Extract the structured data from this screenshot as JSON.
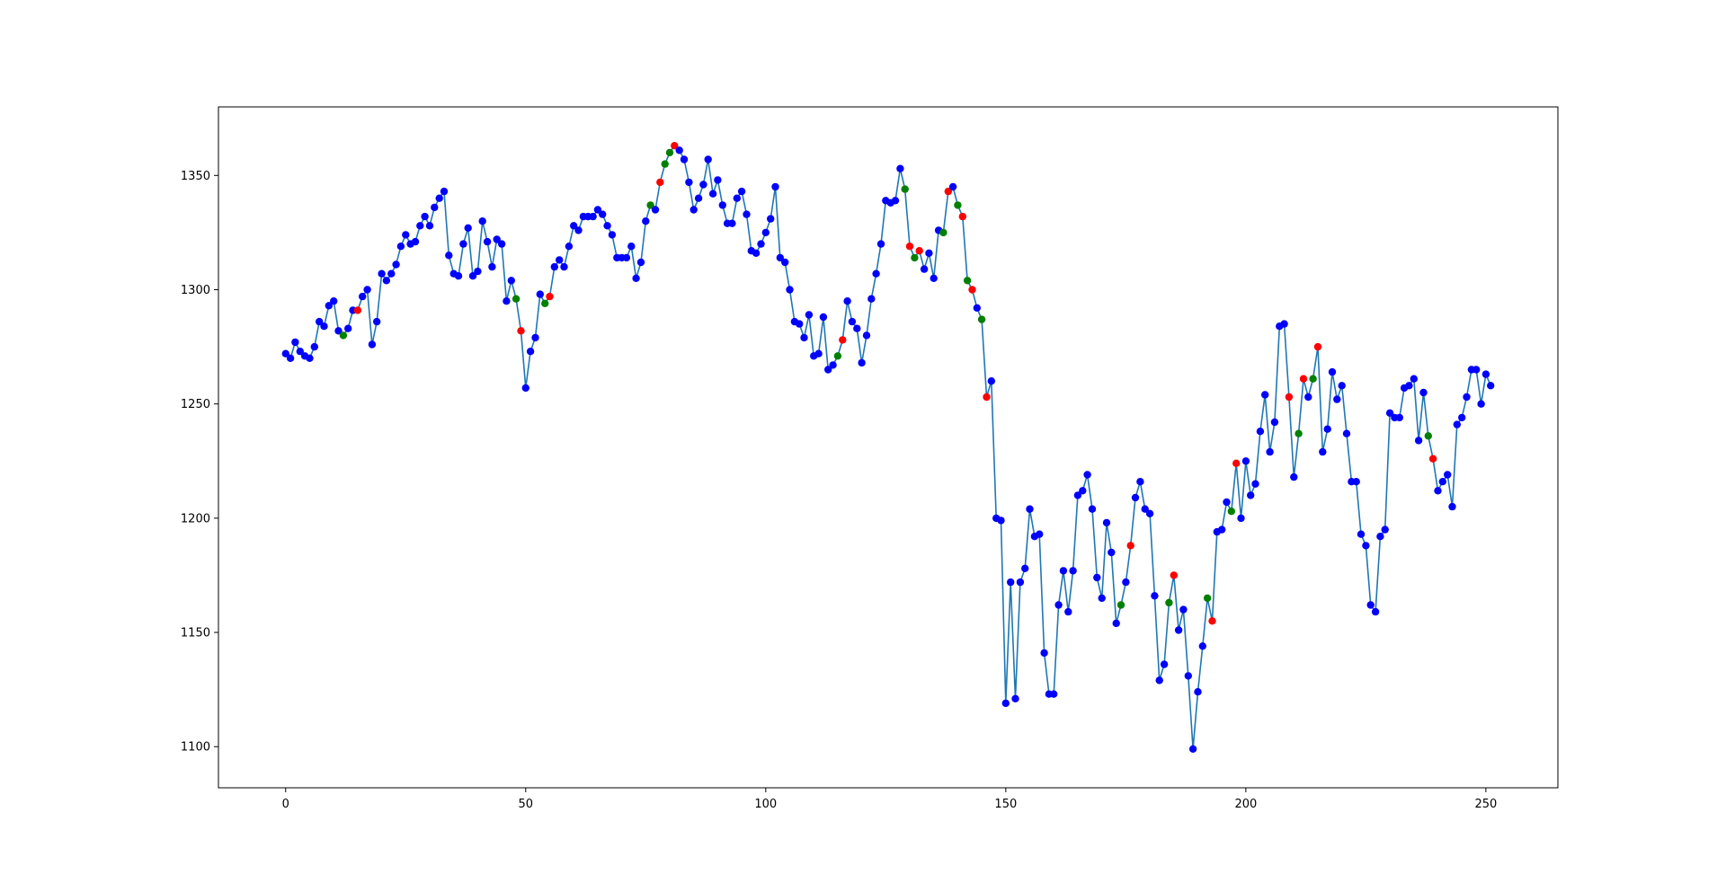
{
  "chart_data": {
    "type": "line",
    "title": "",
    "xlabel": "",
    "ylabel": "",
    "xlim": [
      -14,
      265
    ],
    "ylim": [
      1082,
      1380
    ],
    "x_ticks": [
      0,
      50,
      100,
      150,
      200,
      250
    ],
    "y_ticks": [
      1100,
      1150,
      1200,
      1250,
      1300,
      1350
    ],
    "grid": false,
    "legend": "none",
    "line_color": "#1f77b4",
    "marker_colors": {
      "b": "#0000ff",
      "r": "#ff0000",
      "g": "#008000"
    },
    "x": [
      0,
      1,
      2,
      3,
      4,
      5,
      6,
      7,
      8,
      9,
      10,
      11,
      12,
      13,
      14,
      15,
      16,
      17,
      18,
      19,
      20,
      21,
      22,
      23,
      24,
      25,
      26,
      27,
      28,
      29,
      30,
      31,
      32,
      33,
      34,
      35,
      36,
      37,
      38,
      39,
      40,
      41,
      42,
      43,
      44,
      45,
      46,
      47,
      48,
      49,
      50,
      51,
      52,
      53,
      54,
      55,
      56,
      57,
      58,
      59,
      60,
      61,
      62,
      63,
      64,
      65,
      66,
      67,
      68,
      69,
      70,
      71,
      72,
      73,
      74,
      75,
      76,
      77,
      78,
      79,
      80,
      81,
      82,
      83,
      84,
      85,
      86,
      87,
      88,
      89,
      90,
      91,
      92,
      93,
      94,
      95,
      96,
      97,
      98,
      99,
      100,
      101,
      102,
      103,
      104,
      105,
      106,
      107,
      108,
      109,
      110,
      111,
      112,
      113,
      114,
      115,
      116,
      117,
      118,
      119,
      120,
      121,
      122,
      123,
      124,
      125,
      126,
      127,
      128,
      129,
      130,
      131,
      132,
      133,
      134,
      135,
      136,
      137,
      138,
      139,
      140,
      141,
      142,
      143,
      144,
      145,
      146,
      147,
      148,
      149,
      150,
      151,
      152,
      153,
      154,
      155,
      156,
      157,
      158,
      159,
      160,
      161,
      162,
      163,
      164,
      165,
      166,
      167,
      168,
      169,
      170,
      171,
      172,
      173,
      174,
      175,
      176,
      177,
      178,
      179,
      180,
      181,
      182,
      183,
      184,
      185,
      186,
      187,
      188,
      189,
      190,
      191,
      192,
      193,
      194,
      195,
      196,
      197,
      198,
      199,
      200,
      201,
      202,
      203,
      204,
      205,
      206,
      207,
      208,
      209,
      210,
      211,
      212,
      213,
      214,
      215,
      216,
      217,
      218,
      219,
      220,
      221,
      222,
      223,
      224,
      225,
      226,
      227,
      228,
      229,
      230,
      231,
      232,
      233,
      234,
      235,
      236,
      237,
      238,
      239,
      240,
      241,
      242,
      243,
      244,
      245,
      246,
      247,
      248,
      249,
      250,
      251
    ],
    "y": [
      1272,
      1270,
      1277,
      1273,
      1271,
      1270,
      1275,
      1286,
      1284,
      1293,
      1295,
      1282,
      1280,
      1283,
      1291,
      1291,
      1297,
      1300,
      1276,
      1286,
      1307,
      1304,
      1307,
      1311,
      1319,
      1324,
      1320,
      1321,
      1328,
      1332,
      1328,
      1336,
      1340,
      1343,
      1315,
      1307,
      1306,
      1320,
      1327,
      1306,
      1308,
      1330,
      1321,
      1310,
      1322,
      1320,
      1295,
      1304,
      1296,
      1282,
      1257,
      1273,
      1279,
      1298,
      1294,
      1297,
      1310,
      1313,
      1310,
      1319,
      1328,
      1326,
      1332,
      1332,
      1332,
      1335,
      1333,
      1328,
      1324,
      1314,
      1314,
      1314,
      1319,
      1305,
      1312,
      1330,
      1337,
      1335,
      1347,
      1355,
      1360,
      1363,
      1361,
      1357,
      1347,
      1335,
      1340,
      1346,
      1357,
      1342,
      1348,
      1337,
      1329,
      1329,
      1340,
      1343,
      1333,
      1317,
      1316,
      1320,
      1325,
      1331,
      1345,
      1314,
      1312,
      1300,
      1286,
      1285,
      1279,
      1289,
      1271,
      1272,
      1288,
      1265,
      1267,
      1271,
      1278,
      1295,
      1286,
      1283,
      1268,
      1280,
      1296,
      1307,
      1320,
      1339,
      1338,
      1339,
      1353,
      1344,
      1319,
      1314,
      1317,
      1309,
      1316,
      1305,
      1326,
      1325,
      1343,
      1345,
      1337,
      1332,
      1304,
      1300,
      1292,
      1287,
      1253,
      1260,
      1200,
      1199,
      1119,
      1172,
      1121,
      1172,
      1178,
      1204,
      1192,
      1193,
      1141,
      1123,
      1123,
      1162,
      1177,
      1159,
      1177,
      1210,
      1212,
      1219,
      1204,
      1174,
      1165,
      1198,
      1185,
      1154,
      1162,
      1172,
      1188,
      1209,
      1216,
      1204,
      1202,
      1166,
      1129,
      1136,
      1163,
      1175,
      1151,
      1160,
      1131,
      1099,
      1124,
      1144,
      1165,
      1155,
      1194,
      1195,
      1207,
      1203,
      1224,
      1200,
      1225,
      1210,
      1215,
      1238,
      1254,
      1229,
      1242,
      1284,
      1285,
      1253,
      1218,
      1237,
      1261,
      1253,
      1261,
      1275,
      1229,
      1239,
      1264,
      1252,
      1258,
      1237,
      1216,
      1216,
      1193,
      1188,
      1162,
      1159,
      1192,
      1195,
      1246,
      1244,
      1244,
      1257,
      1258,
      1261,
      1234,
      1255,
      1236,
      1226,
      1212,
      1216,
      1219,
      1205,
      1241,
      1244,
      1253,
      1265,
      1265,
      1250,
      1263,
      1258
    ],
    "marker_color_codes": "bbbbbbbbbbbbgbbrbbbbbbbbbbbbbbbbbbbbbbbbbbbbbbbbgrbbbbgrbbbbbbbbbbbbbbbbbbbbgbrggrbbbbbbbbbbbbbbbbbbbbbbbbbbbbbbbbbgrbbbbbbbbbbbbgrgrbbbbgrbgrgrbgrbbbbbbbbbbbbbbbbbbbbbbbbbbbgbrbbbbbbbgrbbbbbbgrbbbgrbbbbbbbbbbrbgrbgrbbbbbbbbbbbbbbbbbbbbbbgrbbbbbbbbbbbbbbbbbbbbbbbbbgr--"
  }
}
